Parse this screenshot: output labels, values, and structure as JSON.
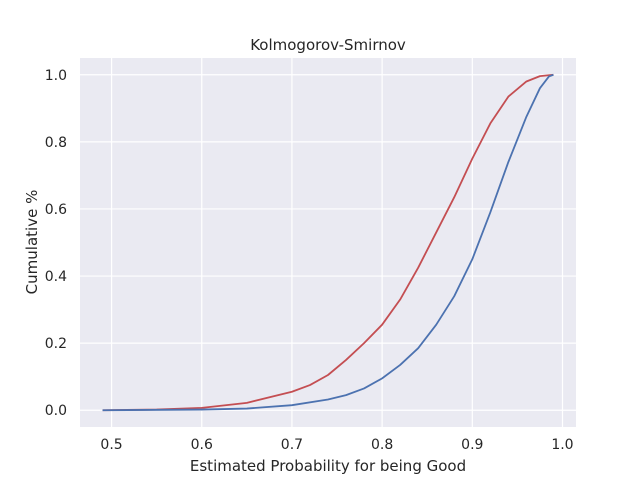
{
  "chart_data": {
    "type": "line",
    "title": "Kolmogorov-Smirnov",
    "xlabel": "Estimated Probability for being Good",
    "ylabel": "Cumulative %",
    "xlim": [
      0.465,
      1.015
    ],
    "ylim": [
      -0.05,
      1.05
    ],
    "xticks": [
      "0.5",
      "0.6",
      "0.7",
      "0.8",
      "0.9",
      "1.0"
    ],
    "yticks": [
      "0.0",
      "0.2",
      "0.4",
      "0.6",
      "0.8",
      "1.0"
    ],
    "grid": true,
    "background_color": "#EAEAF2",
    "grid_color": "#FFFFFF",
    "series": [
      {
        "color": "#C44E52",
        "points": [
          [
            0.49,
            0.0
          ],
          [
            0.55,
            0.002
          ],
          [
            0.6,
            0.007
          ],
          [
            0.65,
            0.022
          ],
          [
            0.7,
            0.055
          ],
          [
            0.72,
            0.075
          ],
          [
            0.74,
            0.105
          ],
          [
            0.76,
            0.15
          ],
          [
            0.78,
            0.2
          ],
          [
            0.8,
            0.255
          ],
          [
            0.82,
            0.33
          ],
          [
            0.84,
            0.425
          ],
          [
            0.86,
            0.53
          ],
          [
            0.88,
            0.635
          ],
          [
            0.9,
            0.75
          ],
          [
            0.92,
            0.855
          ],
          [
            0.94,
            0.935
          ],
          [
            0.96,
            0.98
          ],
          [
            0.975,
            0.996
          ],
          [
            0.99,
            1.0
          ]
        ]
      },
      {
        "color": "#4C72B0",
        "points": [
          [
            0.49,
            0.0
          ],
          [
            0.6,
            0.002
          ],
          [
            0.65,
            0.005
          ],
          [
            0.7,
            0.015
          ],
          [
            0.74,
            0.032
          ],
          [
            0.76,
            0.045
          ],
          [
            0.78,
            0.065
          ],
          [
            0.8,
            0.095
          ],
          [
            0.82,
            0.135
          ],
          [
            0.84,
            0.185
          ],
          [
            0.86,
            0.255
          ],
          [
            0.88,
            0.34
          ],
          [
            0.9,
            0.45
          ],
          [
            0.92,
            0.59
          ],
          [
            0.94,
            0.74
          ],
          [
            0.96,
            0.875
          ],
          [
            0.975,
            0.96
          ],
          [
            0.985,
            0.995
          ],
          [
            0.99,
            1.0
          ]
        ]
      }
    ]
  }
}
